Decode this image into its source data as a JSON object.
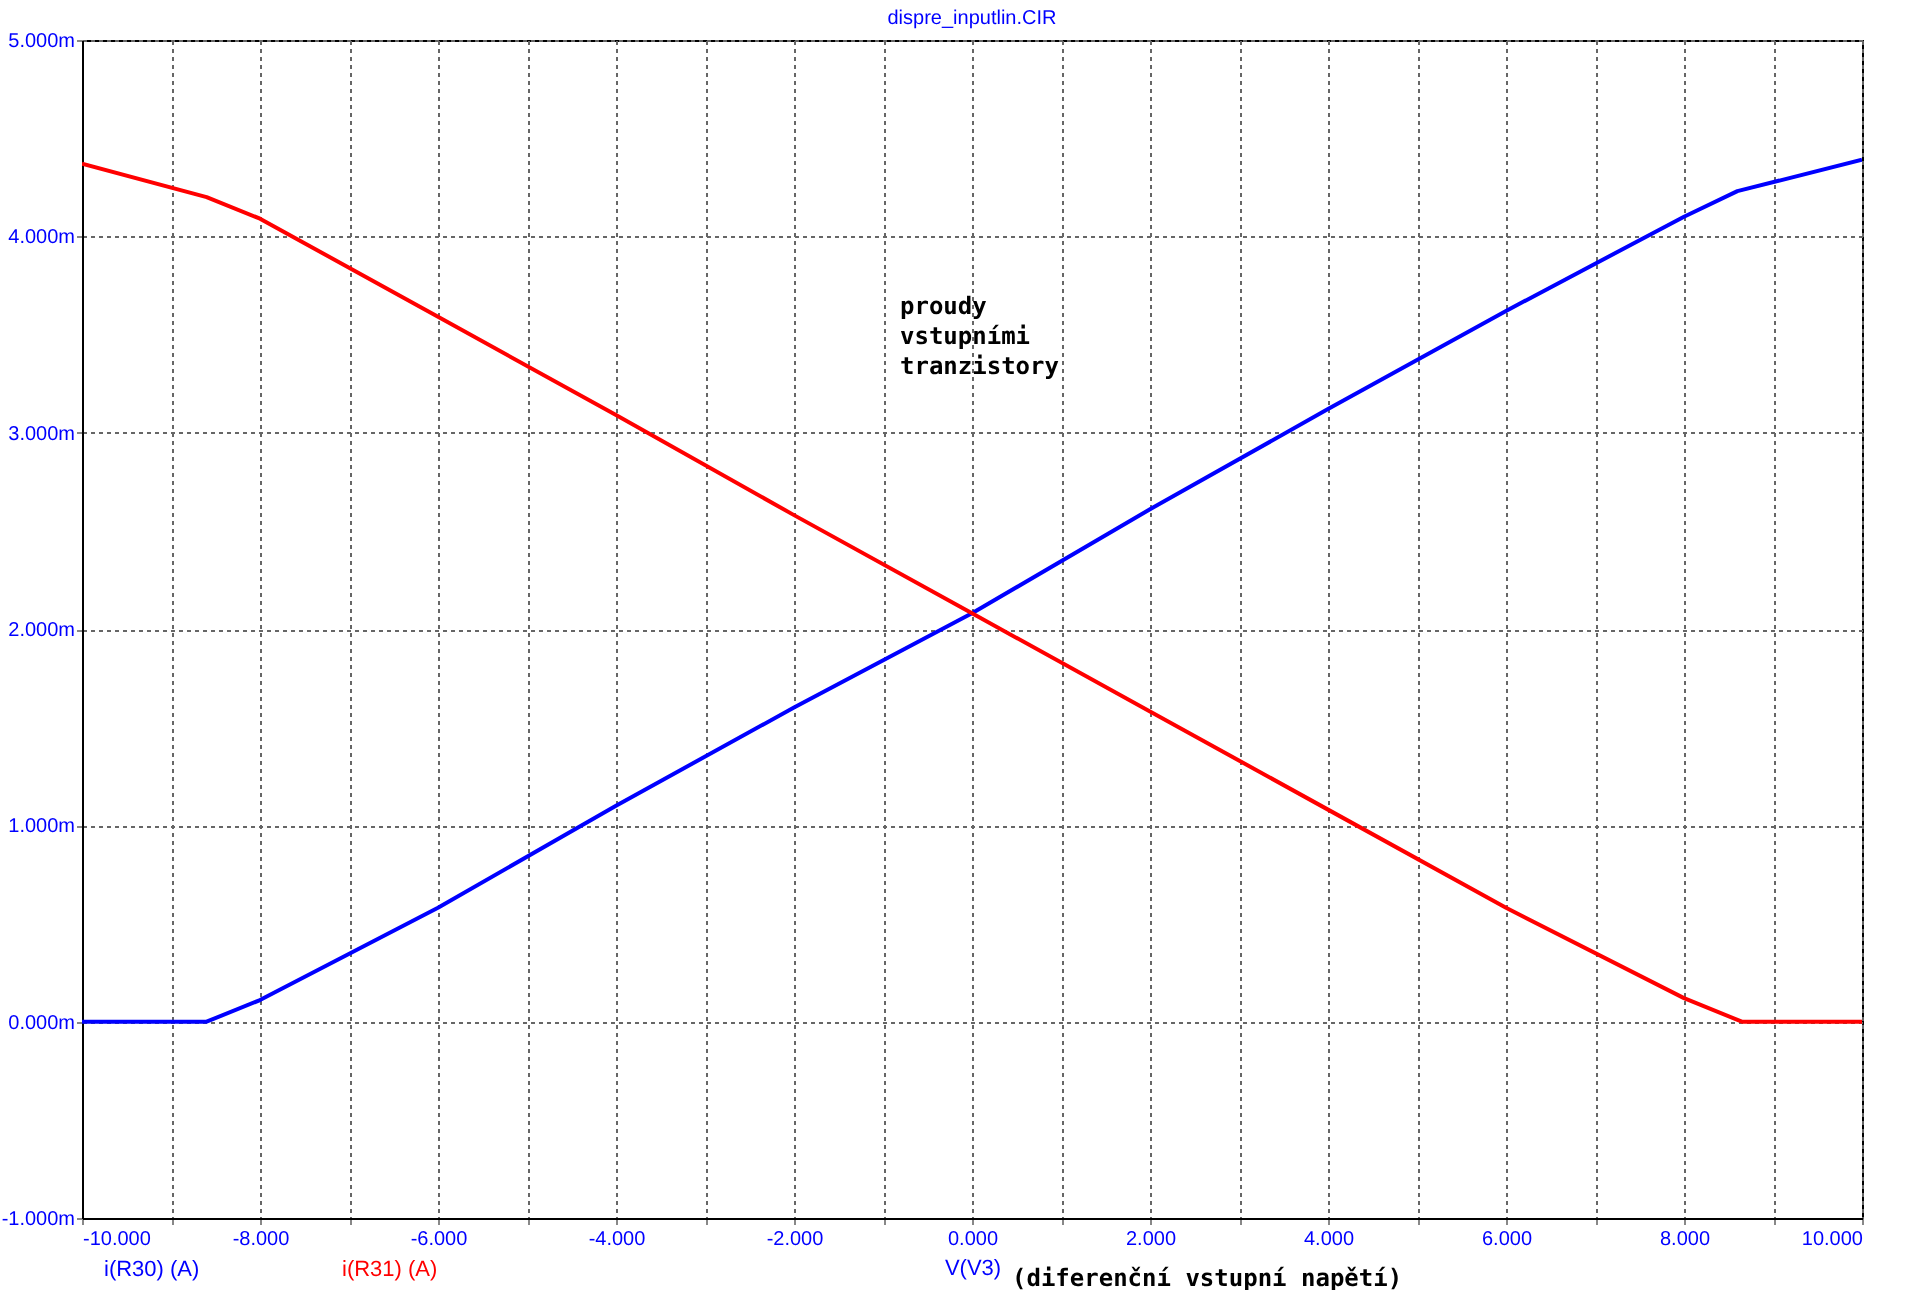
{
  "chart_data": {
    "type": "line",
    "title": "dispre_inputlin.CIR",
    "xlabel": "V(V3)",
    "annotations": [
      "(diferenční vstupní napětí)",
      "proudy vstupními tranzistory"
    ],
    "series": [
      {
        "name": "i(R30) (A)",
        "color": "#0000ff",
        "x": [
          -10,
          -8.6,
          -8,
          -6,
          -4,
          -2,
          0,
          2,
          4,
          6,
          8,
          8.6,
          10
        ],
        "values": [
          0,
          0,
          0.11,
          0.58,
          1.1,
          1.6,
          2.08,
          2.61,
          3.12,
          3.62,
          4.1,
          4.23,
          4.39
        ]
      },
      {
        "name": "i(R31) (A)",
        "color": "#ff0000",
        "x": [
          -10,
          -8.6,
          -8,
          -6,
          -4,
          -2,
          0,
          2,
          4,
          6,
          8,
          8.65,
          10
        ],
        "values": [
          4.37,
          4.2,
          4.09,
          3.59,
          3.09,
          2.58,
          2.08,
          1.58,
          1.08,
          0.58,
          0.12,
          0,
          0
        ]
      }
    ],
    "xlim": [
      -10,
      10
    ],
    "xticks": [
      {
        "value": -10,
        "label": "-10.000"
      },
      {
        "value": -9,
        "label": null
      },
      {
        "value": -8,
        "label": "-8.000"
      },
      {
        "value": -7,
        "label": null
      },
      {
        "value": -6,
        "label": "-6.000"
      },
      {
        "value": -5,
        "label": null
      },
      {
        "value": -4,
        "label": "-4.000"
      },
      {
        "value": -3,
        "label": null
      },
      {
        "value": -2,
        "label": "-2.000"
      },
      {
        "value": -1,
        "label": null
      },
      {
        "value": 0,
        "label": "0.000"
      },
      {
        "value": 1,
        "label": null
      },
      {
        "value": 2,
        "label": "2.000"
      },
      {
        "value": 3,
        "label": null
      },
      {
        "value": 4,
        "label": "4.000"
      },
      {
        "value": 5,
        "label": null
      },
      {
        "value": 6,
        "label": "6.000"
      },
      {
        "value": 7,
        "label": null
      },
      {
        "value": 8,
        "label": "8.000"
      },
      {
        "value": 9,
        "label": null
      },
      {
        "value": 10,
        "label": "10.000"
      }
    ],
    "ylim": [
      -1,
      5
    ],
    "yticks": [
      {
        "value": -1,
        "label": "-1.000m"
      },
      {
        "value": 0,
        "label": "0.000m"
      },
      {
        "value": 1,
        "label": "1.000m"
      },
      {
        "value": 2,
        "label": "2.000m"
      },
      {
        "value": 3,
        "label": "3.000m"
      },
      {
        "value": 4,
        "label": "4.000m"
      },
      {
        "value": 5,
        "label": "5.000m"
      }
    ],
    "grid": true,
    "legend": "bottom left",
    "marker": "none",
    "line_style": "solid"
  }
}
